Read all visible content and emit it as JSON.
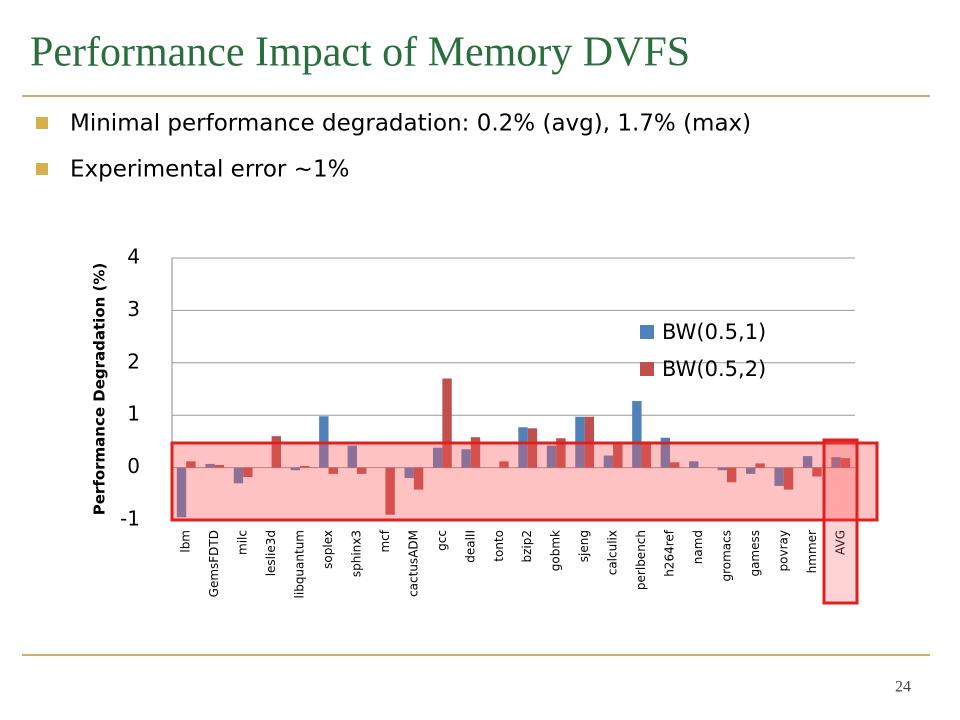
{
  "title": "Performance Impact of Memory DVFS",
  "bullets": [
    "Minimal performance degradation: 0.2% (avg), 1.7% (max)",
    "Experimental error ~1%"
  ],
  "page_number": "24",
  "chart_data": {
    "type": "bar",
    "y_label": "Performance Degradation (%)",
    "categories": [
      "lbm",
      "GemsFDTD",
      "milc",
      "leslie3d",
      "libquantum",
      "soplex",
      "sphinx3",
      "mcf",
      "cactusADM",
      "gcc",
      "dealII",
      "tonto",
      "bzip2",
      "gobmk",
      "sjeng",
      "calculix",
      "perlbench",
      "h264ref",
      "namd",
      "gromacs",
      "gamess",
      "povray",
      "hmmer",
      "AVG"
    ],
    "series": [
      {
        "name": "BW(0.5,1)",
        "color": "#4f81bd",
        "values": [
          -0.95,
          0.07,
          -0.3,
          0,
          -0.05,
          0.98,
          0.42,
          0,
          -0.2,
          0.38,
          0.35,
          0,
          0.77,
          0.42,
          0.97,
          0.23,
          1.27,
          0.57,
          0.12,
          -0.05,
          -0.12,
          -0.35,
          0.22,
          0.2
        ]
      },
      {
        "name": "BW(0.5,2)",
        "color": "#c0504d",
        "values": [
          0.12,
          0.05,
          -0.18,
          0.6,
          0.03,
          -0.12,
          -0.12,
          -0.9,
          -0.42,
          1.7,
          0.58,
          0.12,
          0.75,
          0.56,
          0.97,
          0.44,
          0.5,
          0.1,
          0,
          -0.28,
          0.08,
          -0.42,
          -0.17,
          0.18
        ]
      }
    ],
    "ylim": [
      -1,
      4
    ],
    "yticks": [
      -1,
      0,
      1,
      2,
      3,
      4
    ],
    "grid": true,
    "legend": "upper right"
  }
}
